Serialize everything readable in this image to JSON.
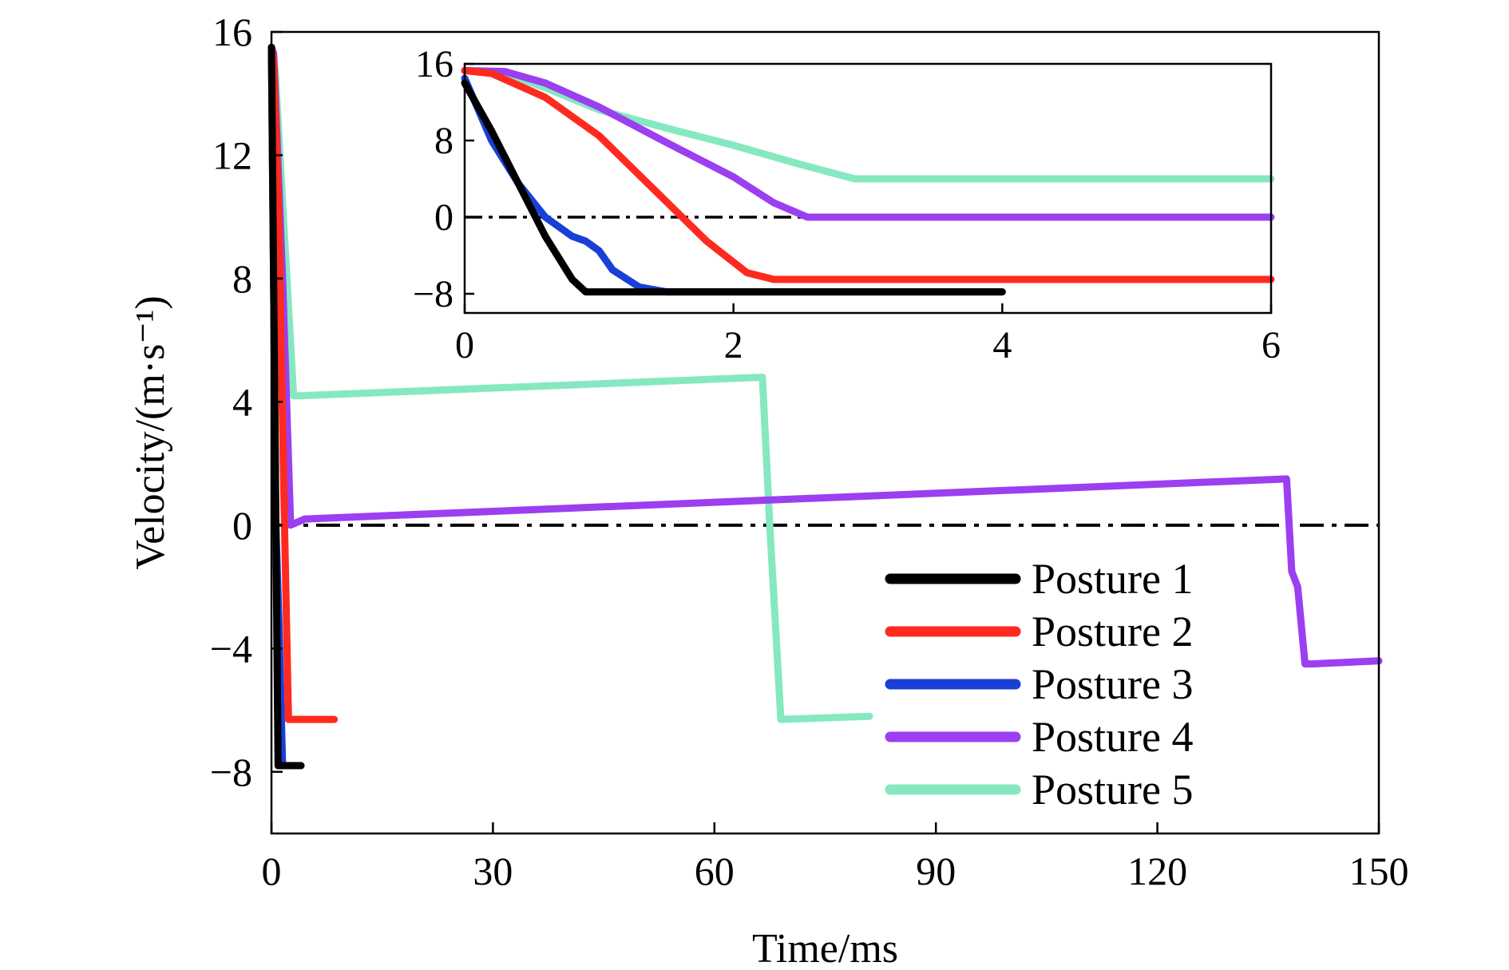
{
  "chart_data": [
    {
      "type": "line",
      "title": "",
      "xlabel": "Time/ms",
      "ylabel": "Velocity/(m·s⁻¹)",
      "xlim": [
        0,
        150
      ],
      "ylim": [
        -10,
        16
      ],
      "xticks": [
        0,
        30,
        60,
        90,
        120,
        150
      ],
      "xtick_labels": [
        "0",
        "30",
        "60",
        "90",
        "120",
        "150"
      ],
      "yticks": [
        -8,
        -4,
        0,
        4,
        8,
        12,
        16
      ],
      "ytick_labels": [
        "−8",
        "−4",
        "0",
        "4",
        "8",
        "12",
        "16"
      ],
      "grid": false,
      "legend_position": "bottom-right",
      "reference_line": {
        "y": 0,
        "style": "dash-dot",
        "color": "#000000"
      },
      "series": [
        {
          "name": "Posture 1",
          "color": "#000000",
          "x": [
            0,
            0.9,
            4
          ],
          "y": [
            15.5,
            -7.8,
            -7.8
          ]
        },
        {
          "name": "Posture 2",
          "color": "#ff2a1f",
          "x": [
            0,
            0.3,
            1.0,
            1.6,
            2.3,
            8.5
          ],
          "y": [
            15.5,
            15,
            10,
            2,
            -6.3,
            -6.3
          ]
        },
        {
          "name": "Posture 3",
          "color": "#1a3fd6",
          "x": [
            0,
            0.6,
            1.0,
            1.5,
            4
          ],
          "y": [
            15.5,
            0,
            -3,
            -7.8,
            -7.8
          ]
        },
        {
          "name": "Posture 4",
          "color": "#9b3ff0",
          "x": [
            0,
            0.3,
            1.5,
            2.6,
            4.5,
            137.5,
            138.2,
            139,
            140,
            141,
            150
          ],
          "y": [
            15.5,
            15.3,
            8,
            0,
            0.2,
            1.5,
            -1.5,
            -2,
            -4.5,
            -4.5,
            -4.4
          ]
        },
        {
          "name": "Posture 5",
          "color": "#86e8c0",
          "x": [
            0,
            0.5,
            1.5,
            3,
            4,
            66.5,
            67.5,
            69,
            81
          ],
          "y": [
            15.5,
            14.8,
            10.5,
            4.2,
            4.2,
            4.8,
            0,
            -6.3,
            -6.2
          ]
        }
      ]
    },
    {
      "type": "line",
      "title": "",
      "xlabel": "",
      "ylabel": "",
      "xlim": [
        0,
        6
      ],
      "ylim": [
        -10,
        16
      ],
      "xticks": [
        0,
        2,
        4,
        6
      ],
      "xtick_labels": [
        "0",
        "2",
        "4",
        "6"
      ],
      "yticks": [
        -8,
        0,
        8,
        16
      ],
      "ytick_labels": [
        "−8",
        "0",
        "8",
        "16"
      ],
      "grid": false,
      "reference_line": {
        "y": 0,
        "style": "dash-dot",
        "color": "#000000"
      },
      "series": [
        {
          "name": "Posture 1",
          "color": "#000000",
          "x": [
            0,
            0.2,
            0.4,
            0.6,
            0.8,
            0.9,
            4
          ],
          "y": [
            14,
            9,
            3.5,
            -2,
            -6.5,
            -7.8,
            -7.8
          ]
        },
        {
          "name": "Posture 2",
          "color": "#ff2a1f",
          "x": [
            0,
            0.2,
            0.6,
            1.0,
            1.4,
            1.8,
            2.1,
            2.3,
            6
          ],
          "y": [
            15.3,
            15,
            12.5,
            8.5,
            3,
            -2.5,
            -5.8,
            -6.5,
            -6.5
          ]
        },
        {
          "name": "Posture 3",
          "color": "#1a3fd6",
          "x": [
            0,
            0.2,
            0.4,
            0.6,
            0.8,
            0.9,
            1.0,
            1.1,
            1.3,
            1.5,
            4
          ],
          "y": [
            14.5,
            8,
            3.5,
            0,
            -2,
            -2.5,
            -3.5,
            -5.5,
            -7.3,
            -7.8,
            -7.8
          ]
        },
        {
          "name": "Posture 4",
          "color": "#9b3ff0",
          "x": [
            0,
            0.3,
            0.6,
            1.0,
            1.5,
            2.0,
            2.3,
            2.55,
            6
          ],
          "y": [
            15.3,
            15.2,
            14,
            11.5,
            7.8,
            4.2,
            1.5,
            0,
            0
          ]
        },
        {
          "name": "Posture 5",
          "color": "#86e8c0",
          "x": [
            0,
            0.3,
            0.6,
            1.0,
            1.5,
            2.0,
            2.5,
            2.9,
            6
          ],
          "y": [
            15.3,
            15,
            13.5,
            11.2,
            9.3,
            7.5,
            5.5,
            4,
            4
          ]
        }
      ]
    }
  ]
}
